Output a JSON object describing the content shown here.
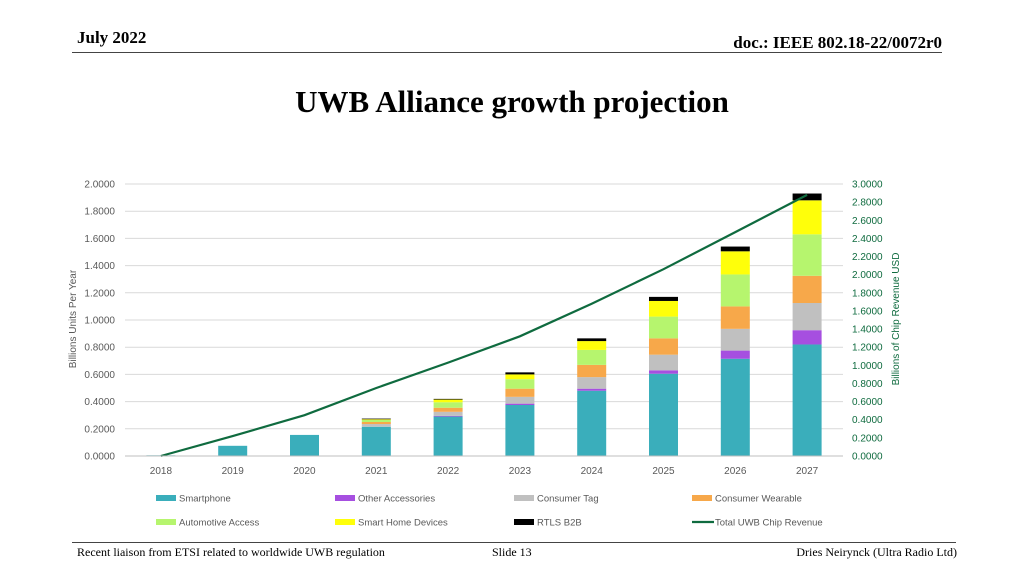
{
  "header": {
    "date": "July 2022",
    "doc_id": "doc.: IEEE 802.18-22/0072r0"
  },
  "slide": {
    "title": "UWB Alliance growth projection"
  },
  "footer": {
    "left": "Recent liaison from ETSI related to worldwide UWB regulation",
    "center": "Slide 13",
    "right": "Dries Neirynck (Ultra Radio Ltd)"
  },
  "colors": {
    "Smartphone": "#3aaebb",
    "Other Accessories": "#a64fe0",
    "Consumer Tag": "#c0c0c0",
    "Consumer Wearable": "#f7a84a",
    "Automotive Access": "#b6f56e",
    "Smart Home Devices": "#ffff0a",
    "RTLS B2B": "#000000",
    "Total UWB Chip Revenue": "#0f6b3f"
  },
  "chart_data": {
    "type": "bar",
    "stacked": true,
    "categories": [
      "2018",
      "2019",
      "2020",
      "2021",
      "2022",
      "2023",
      "2024",
      "2025",
      "2026",
      "2027"
    ],
    "series": [
      {
        "name": "Smartphone",
        "values": [
          0.005,
          0.075,
          0.155,
          0.215,
          0.29,
          0.375,
          0.48,
          0.605,
          0.715,
          0.82
        ]
      },
      {
        "name": "Other Accessories",
        "values": [
          0,
          0,
          0,
          0,
          0.005,
          0.01,
          0.015,
          0.025,
          0.06,
          0.105
        ]
      },
      {
        "name": "Consumer Tag",
        "values": [
          0,
          0,
          0,
          0.02,
          0.03,
          0.05,
          0.085,
          0.115,
          0.16,
          0.2
        ]
      },
      {
        "name": "Consumer Wearable",
        "values": [
          0,
          0,
          0,
          0.015,
          0.03,
          0.06,
          0.09,
          0.12,
          0.165,
          0.2
        ]
      },
      {
        "name": "Automotive Access",
        "values": [
          0,
          0,
          0,
          0.015,
          0.04,
          0.07,
          0.11,
          0.16,
          0.235,
          0.305
        ]
      },
      {
        "name": "Smart Home Devices",
        "values": [
          0,
          0,
          0,
          0.005,
          0.02,
          0.035,
          0.065,
          0.115,
          0.17,
          0.25
        ]
      },
      {
        "name": "RTLS B2B",
        "values": [
          0,
          0,
          0,
          0.005,
          0.005,
          0.015,
          0.02,
          0.03,
          0.035,
          0.05
        ]
      }
    ],
    "line": {
      "name": "Total UWB Chip Revenue",
      "axis": "right",
      "values": [
        0.0,
        0.22,
        0.45,
        0.75,
        1.03,
        1.32,
        1.68,
        2.06,
        2.47,
        2.88
      ]
    },
    "y_left": {
      "label": "Billions Units Per Year",
      "min": 0,
      "max": 2.0,
      "ticks": [
        "0.0000",
        "0.2000",
        "0.4000",
        "0.6000",
        "0.8000",
        "1.0000",
        "1.2000",
        "1.4000",
        "1.6000",
        "1.8000",
        "2.0000"
      ]
    },
    "y_right": {
      "label": "Billions of Chip Revenue USD",
      "min": 0,
      "max": 3.0,
      "ticks": [
        "0.0000",
        "0.2000",
        "0.4000",
        "0.6000",
        "0.8000",
        "1.0000",
        "1.2000",
        "1.4000",
        "1.6000",
        "1.8000",
        "2.0000",
        "2.2000",
        "2.4000",
        "2.6000",
        "2.8000",
        "3.0000"
      ]
    },
    "grid": true,
    "legend_position": "bottom",
    "legend": [
      "Smartphone",
      "Other Accessories",
      "Consumer Tag",
      "Consumer Wearable",
      "Automotive Access",
      "Smart Home Devices",
      "RTLS B2B",
      "Total UWB Chip Revenue"
    ]
  }
}
